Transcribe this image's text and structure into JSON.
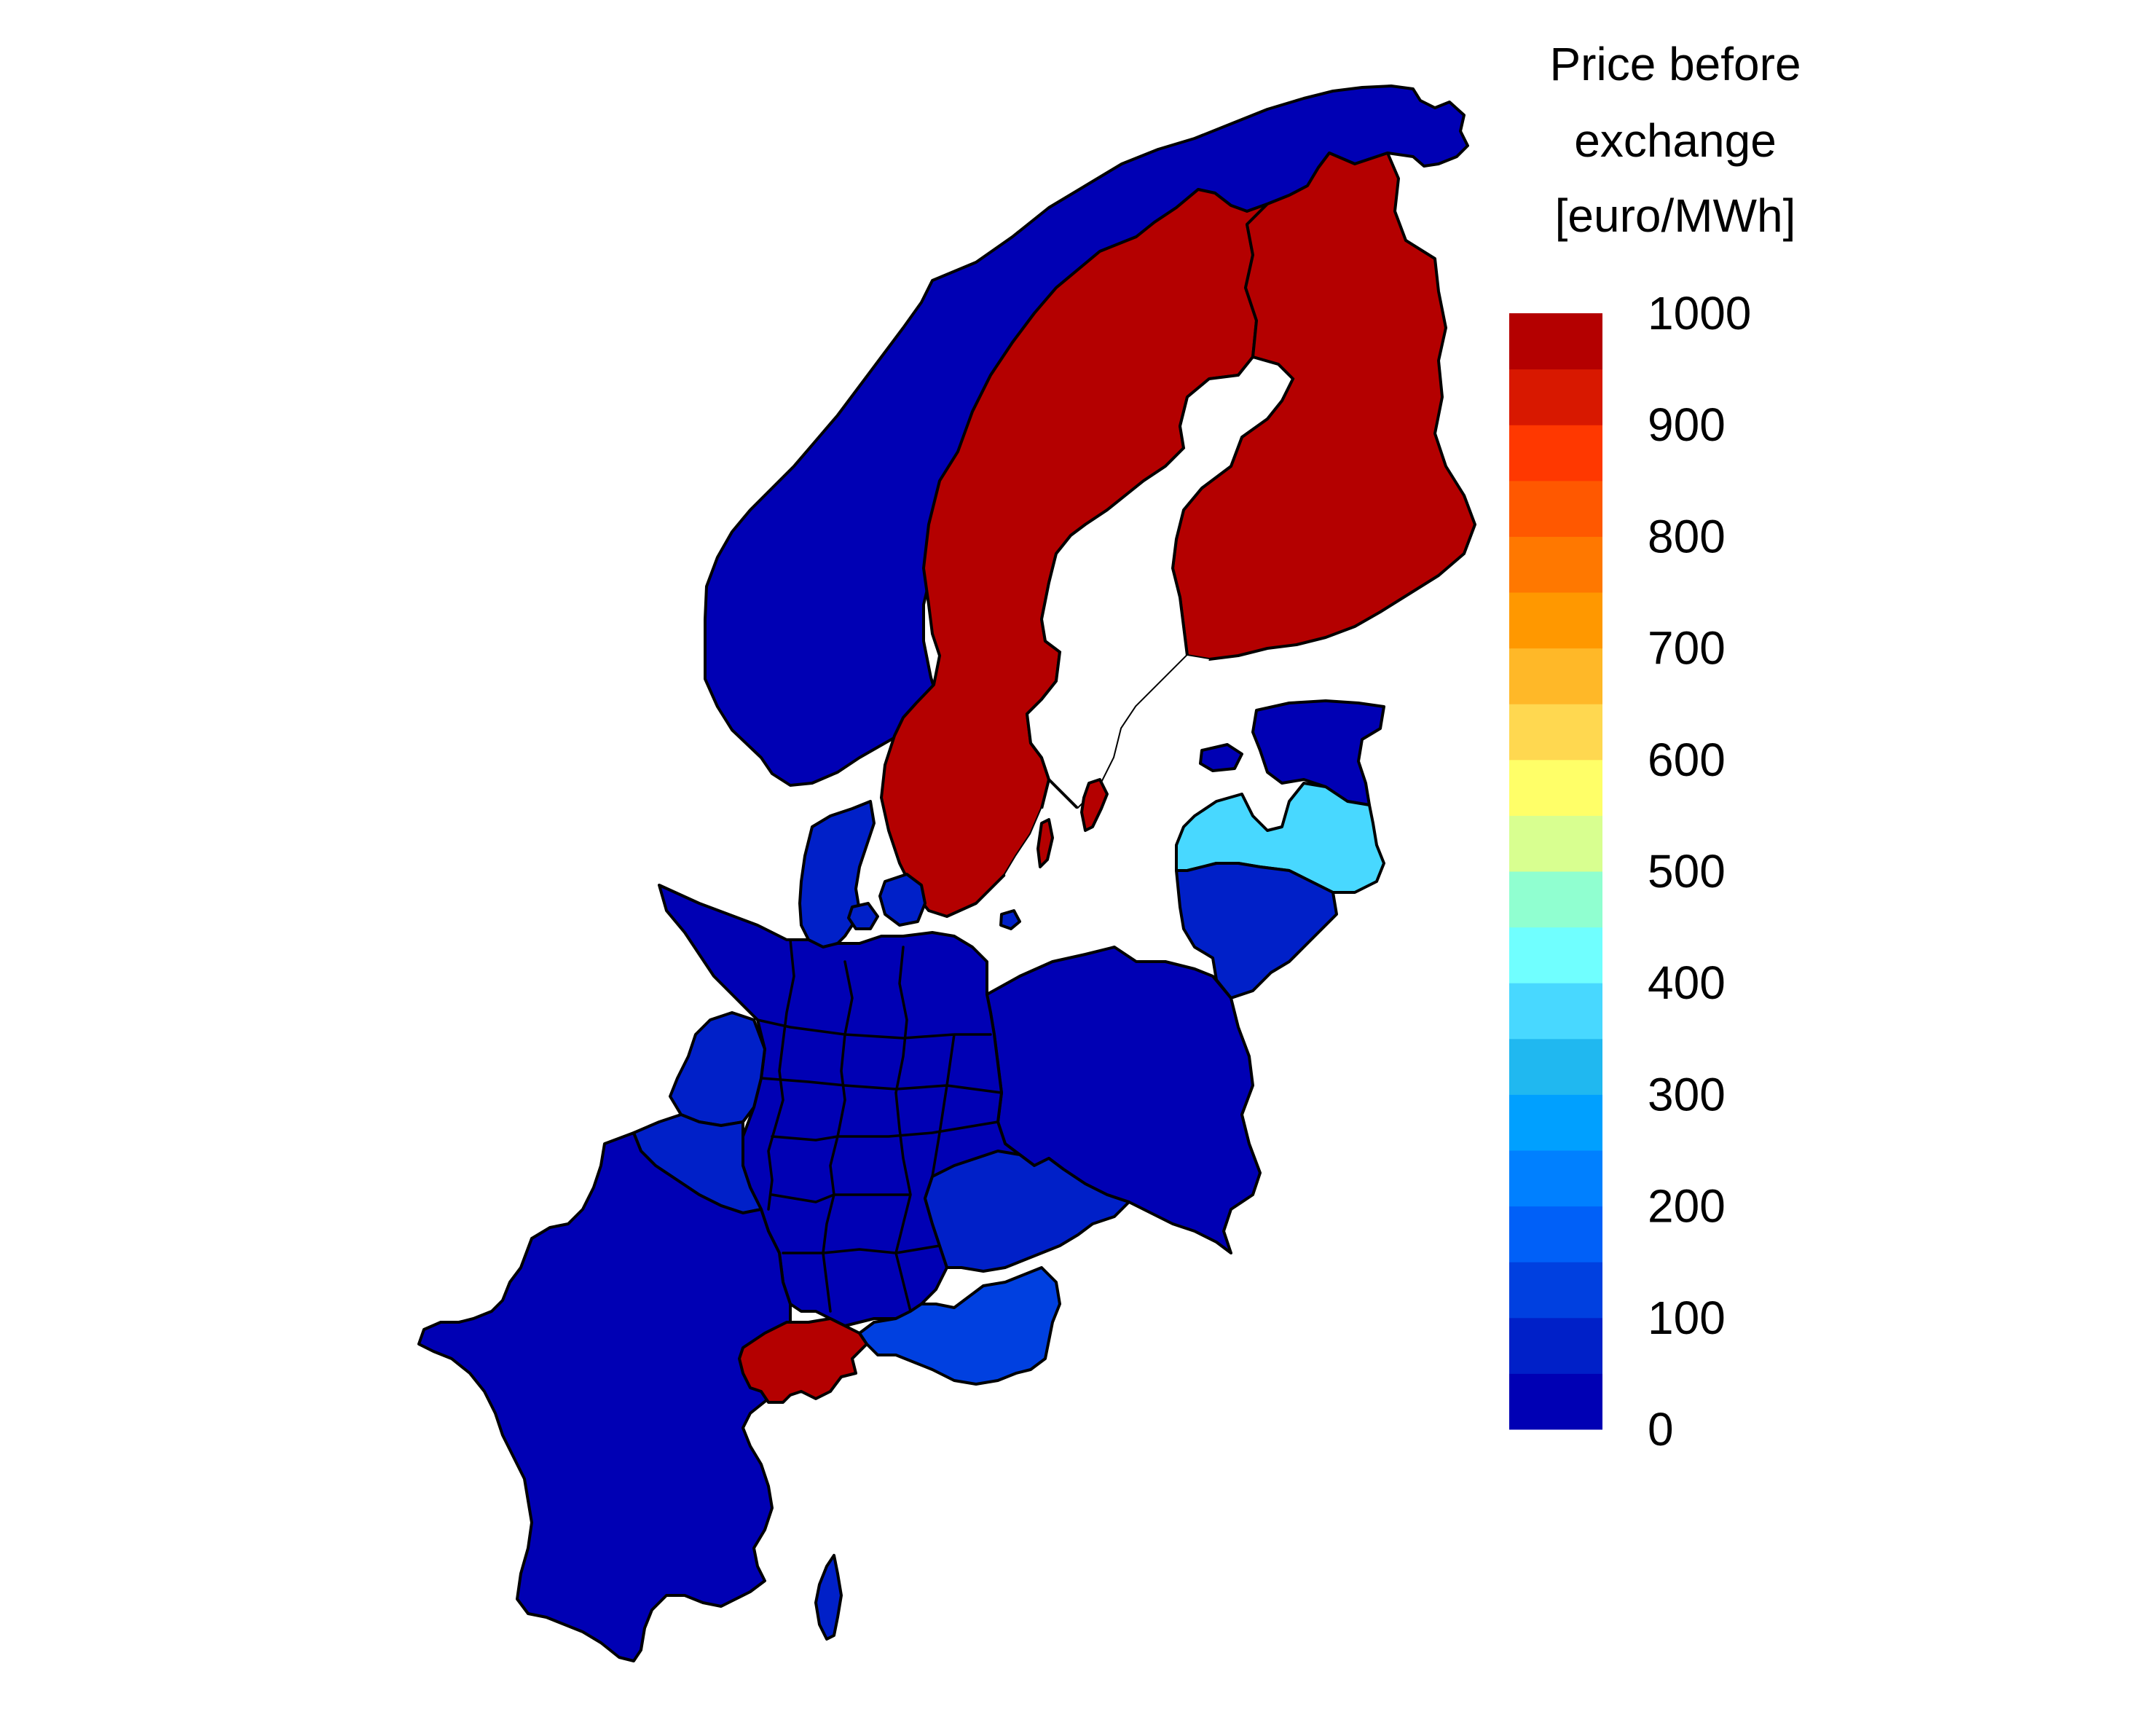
{
  "legend": {
    "title_lines": [
      "Price before",
      "exchange",
      "[euro/MWh]"
    ],
    "tick_labels": [
      "1000",
      "900",
      "800",
      "700",
      "600",
      "500",
      "400",
      "300",
      "200",
      "100",
      "0"
    ],
    "color_bands": [
      "#0000b4",
      "#0020c8",
      "#0040e0",
      "#0060f8",
      "#0080ff",
      "#00a0ff",
      "#20b8f0",
      "#48d8ff",
      "#70ffff",
      "#90ffd0",
      "#d8ff90",
      "#ffff68",
      "#ffd850",
      "#ffb828",
      "#ff9800",
      "#ff7800",
      "#ff5800",
      "#ff3800",
      "#d81800",
      "#b40000"
    ]
  },
  "colors": {
    "red": "#b40000",
    "deep_blue": "#0000b4",
    "blue": "#0020c8",
    "mid_blue": "#0040e0",
    "light_cyan": "#48d8ff"
  },
  "regions": [
    {
      "name": "norway",
      "price_band": "deep_blue"
    },
    {
      "name": "sweden",
      "price_band": "red"
    },
    {
      "name": "finland",
      "price_band": "red"
    },
    {
      "name": "estonia",
      "price_band": "deep_blue"
    },
    {
      "name": "latvia",
      "price_band": "light_cyan"
    },
    {
      "name": "lithuania",
      "price_band": "blue"
    },
    {
      "name": "poland",
      "price_band": "deep_blue"
    },
    {
      "name": "denmark",
      "price_band": "blue"
    },
    {
      "name": "germany",
      "price_band": "deep_blue"
    },
    {
      "name": "netherlands",
      "price_band": "blue"
    },
    {
      "name": "belgium",
      "price_band": "blue"
    },
    {
      "name": "france",
      "price_band": "deep_blue"
    },
    {
      "name": "switzerland",
      "price_band": "red"
    },
    {
      "name": "austria",
      "price_band": "mid_blue"
    },
    {
      "name": "czech-republic",
      "price_band": "blue"
    },
    {
      "name": "gotland",
      "price_band": "red"
    },
    {
      "name": "corsica",
      "price_band": "blue"
    }
  ]
}
